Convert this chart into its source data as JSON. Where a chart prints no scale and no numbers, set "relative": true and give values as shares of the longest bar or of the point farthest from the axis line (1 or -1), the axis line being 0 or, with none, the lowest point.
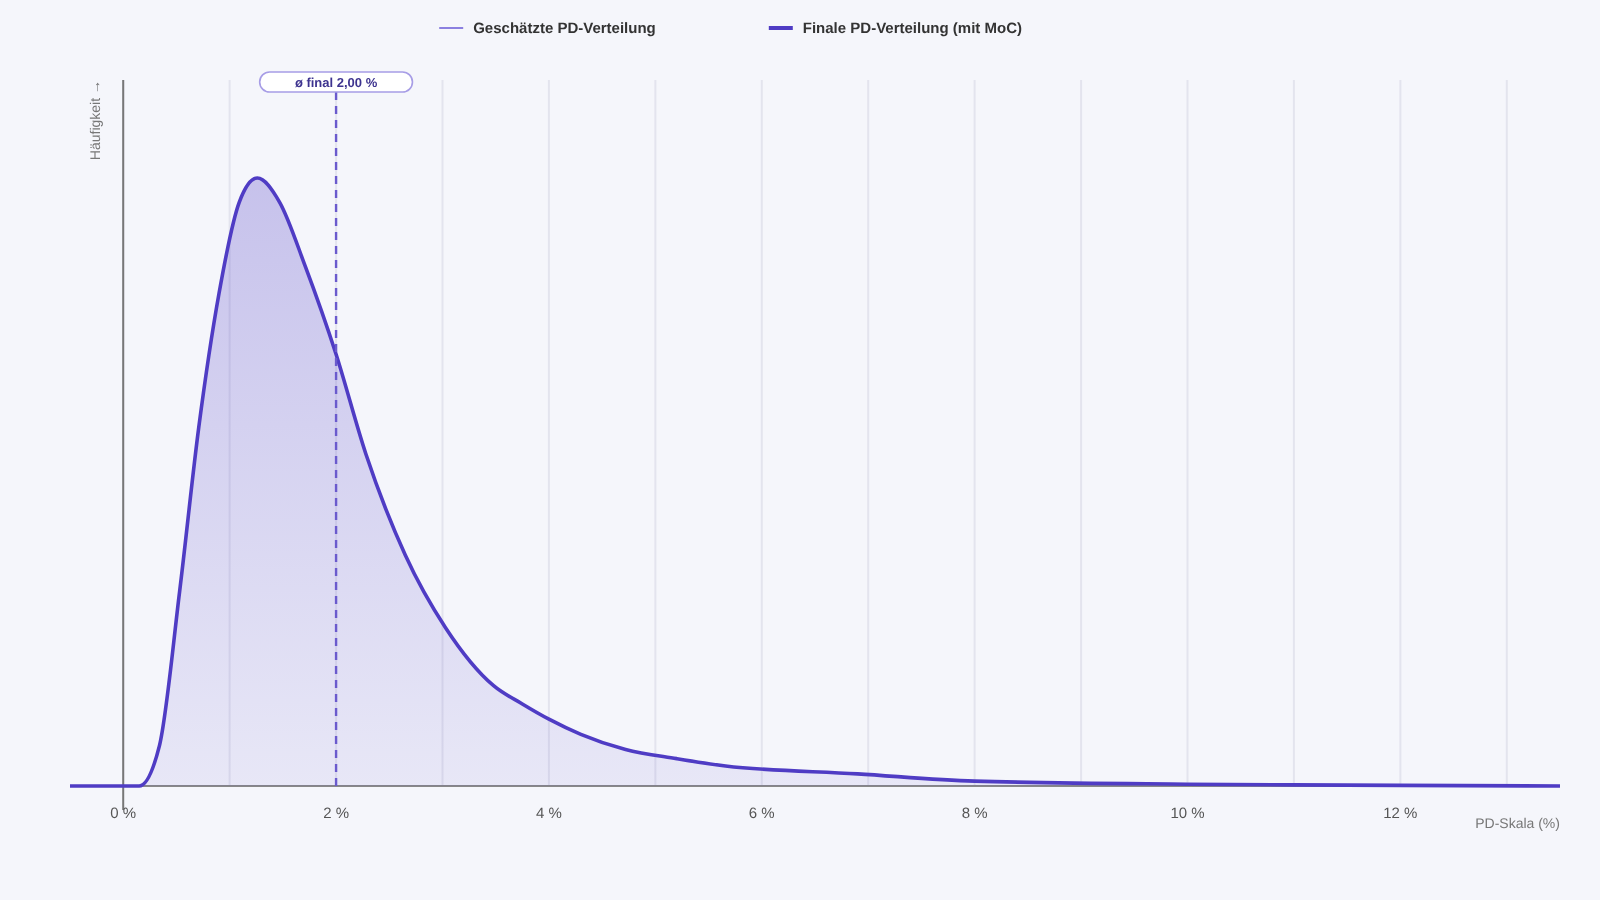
{
  "chart_data": {
    "type": "area",
    "relative": true,
    "ylabel": "Häufigkeit →",
    "xlabel": "PD-Skala (%)",
    "x": [
      -0.5,
      0,
      0.15,
      0.34,
      0.53,
      0.71,
      0.9,
      1.09,
      1.26,
      1.47,
      1.71,
      2.0,
      2.28,
      2.65,
      3.03,
      3.48,
      3.75,
      4.0,
      4.3,
      4.72,
      5.2,
      5.66,
      6.9,
      8,
      10,
      12,
      13.5
    ],
    "series": [
      {
        "name": "Geschätzte PD-Verteilung",
        "color": "#8b80e0",
        "values": [
          null,
          null,
          null,
          null,
          null,
          null,
          null,
          null,
          null,
          null,
          null,
          null,
          null,
          null,
          null,
          null,
          null,
          null,
          null,
          null,
          null,
          null,
          null,
          null,
          null,
          null,
          null
        ]
      },
      {
        "name": "Finale PD-Verteilung (mit MoC)",
        "color": "#4f3cc4",
        "values": [
          0,
          0,
          0,
          0.066,
          0.32,
          0.59,
          0.81,
          0.96,
          1,
          0.96,
          0.855,
          0.71,
          0.546,
          0.38,
          0.26,
          0.165,
          0.135,
          0.11,
          0.085,
          0.06,
          0.045,
          0.033,
          0.02,
          0.008,
          0.003,
          0.001,
          0
        ]
      }
    ],
    "xlim": [
      -0.5,
      13.5
    ],
    "xticks": [
      {
        "value": 0,
        "label": "0 %"
      },
      {
        "value": 1,
        "label": null
      },
      {
        "value": 2,
        "label": "2 %"
      },
      {
        "value": 3,
        "label": null
      },
      {
        "value": 4,
        "label": "4 %"
      },
      {
        "value": 5,
        "label": null
      },
      {
        "value": 6,
        "label": "6 %"
      },
      {
        "value": 7,
        "label": null
      },
      {
        "value": 8,
        "label": "8 %"
      },
      {
        "value": 9,
        "label": null
      },
      {
        "value": 10,
        "label": "10 %"
      },
      {
        "value": 11,
        "label": null
      },
      {
        "value": 12,
        "label": "12 %"
      },
      {
        "value": 13,
        "label": null
      }
    ],
    "ref_lines": [
      {
        "axis": "x",
        "value": 2,
        "label": "ø final 2,00 %",
        "color": "#6a5acd",
        "line_style": "dashed"
      }
    ],
    "grid": "x",
    "legend": "top"
  }
}
